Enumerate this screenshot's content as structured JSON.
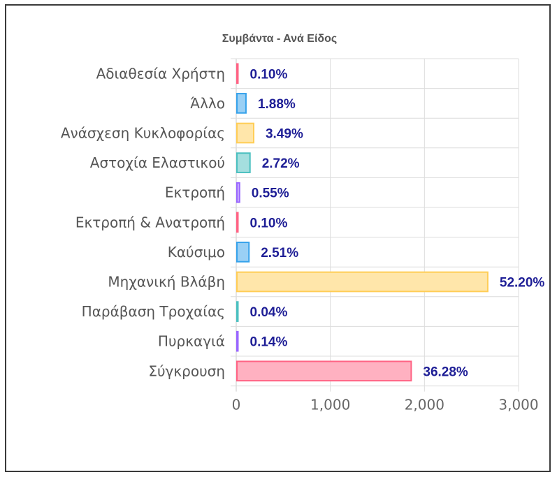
{
  "chart_data": {
    "type": "bar",
    "orientation": "horizontal",
    "title": "Συμβάντα - Ανά Είδος",
    "categories": [
      "Αδιαθεσία Χρήστη",
      "Άλλο",
      "Ανάσχεση Κυκλοφορίας",
      "Αστοχία Ελαστικού",
      "Εκτροπή",
      "Εκτροπή & Ανατροπή",
      "Καύσιμο",
      "Μηχανική Βλάβη",
      "Παράβαση Τροχαίας",
      "Πυρκαγιά",
      "Σύγκρουση"
    ],
    "values": [
      5,
      96,
      178,
      139,
      28,
      5,
      128,
      2665,
      2,
      7,
      1852
    ],
    "data_labels": [
      "0.10%",
      "1.88%",
      "3.49%",
      "2.72%",
      "0.55%",
      "0.10%",
      "2.51%",
      "52.20%",
      "0.04%",
      "0.14%",
      "36.28%"
    ],
    "fill_colors": [
      "#ffb1c1",
      "#9ad0f5",
      "#ffe6aa",
      "#a5dfdf",
      "#ccb2ff",
      "#ffb1c1",
      "#9ad0f5",
      "#ffe6aa",
      "#a5dfdf",
      "#ccb2ff",
      "#ffb1c1"
    ],
    "border_colors": [
      "#ff6384",
      "#36a2eb",
      "#ffcd56",
      "#4bc0c0",
      "#9966ff",
      "#ff6384",
      "#36a2eb",
      "#ffcd56",
      "#4bc0c0",
      "#9966ff",
      "#ff6384"
    ],
    "xlim": [
      0,
      3000
    ],
    "xticks": [
      0,
      1000,
      2000,
      3000
    ],
    "xtick_labels": [
      "0",
      "1,000",
      "2,000",
      "3,000"
    ],
    "xlabel": "",
    "ylabel": "",
    "grid": true,
    "legend": "none"
  }
}
